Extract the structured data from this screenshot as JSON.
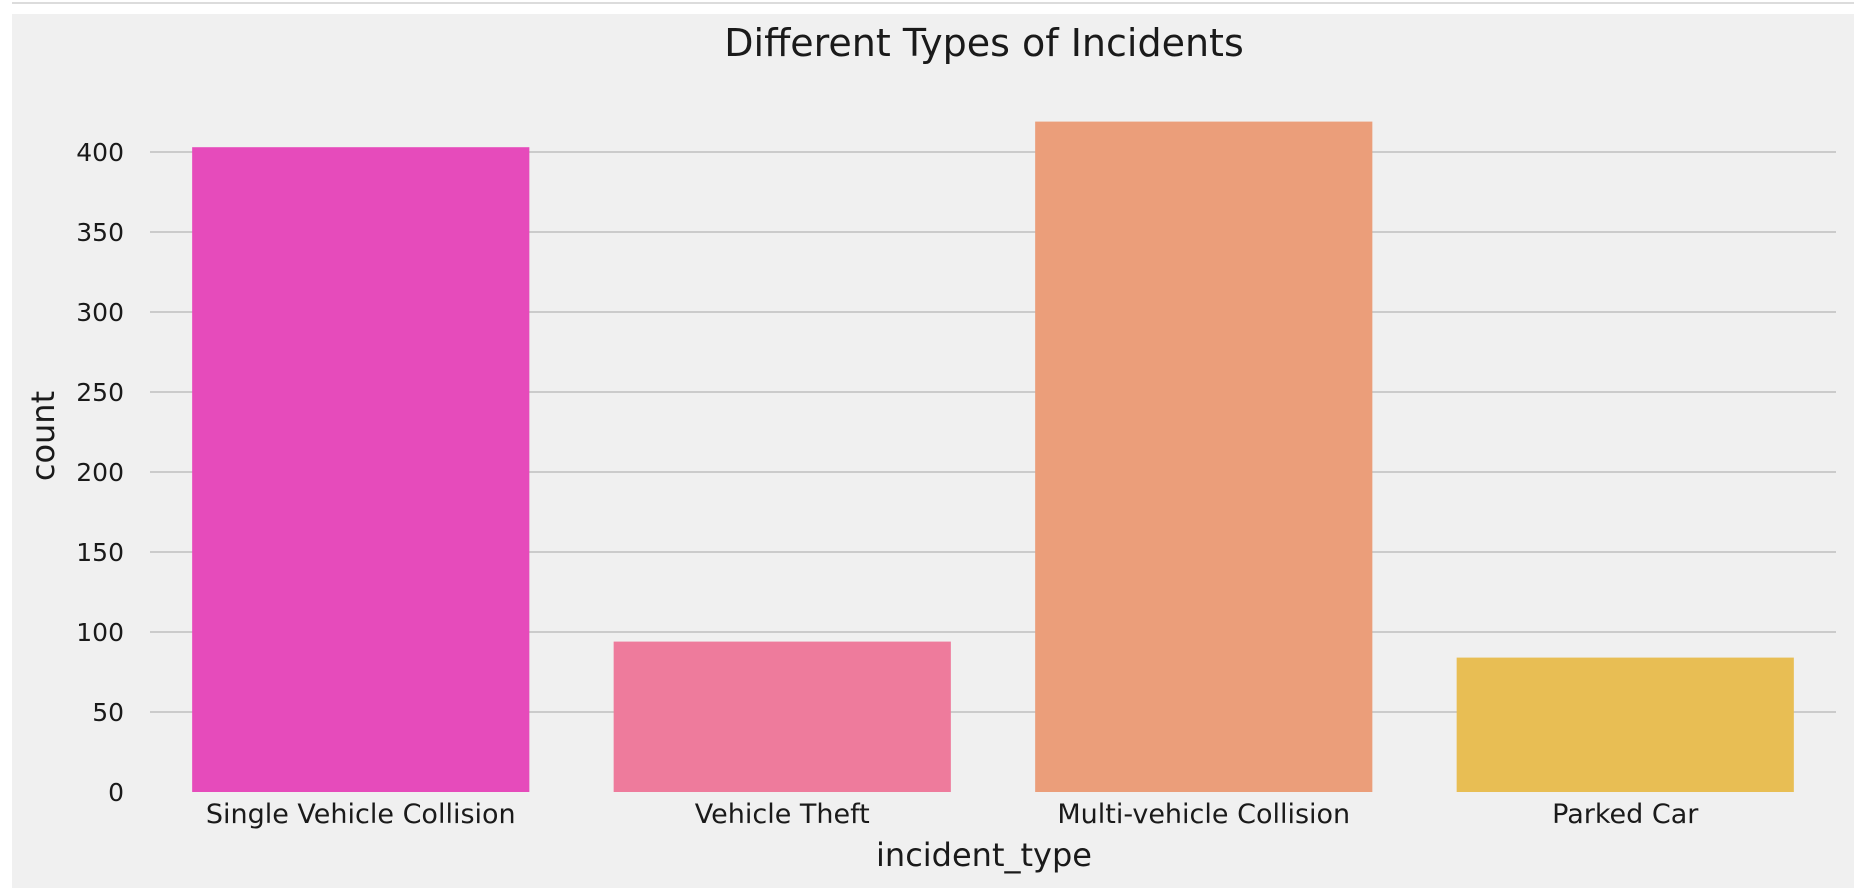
{
  "chart_data": {
    "type": "bar",
    "title": "Different Types of Incidents",
    "xlabel": "incident_type",
    "ylabel": "count",
    "categories": [
      "Single Vehicle Collision",
      "Vehicle Theft",
      "Multi-vehicle Collision",
      "Parked Car"
    ],
    "values": [
      403,
      94,
      419,
      84
    ],
    "colors": [
      "#e64bbb",
      "#ee7b9c",
      "#eb9e7a",
      "#e8be54"
    ],
    "ylim": [
      0,
      440
    ],
    "yticks": [
      0,
      50,
      100,
      150,
      200,
      250,
      300,
      350,
      400
    ],
    "grid": "horizontal",
    "background": "#f0f0f0",
    "grid_color": "#cbcbcb"
  }
}
